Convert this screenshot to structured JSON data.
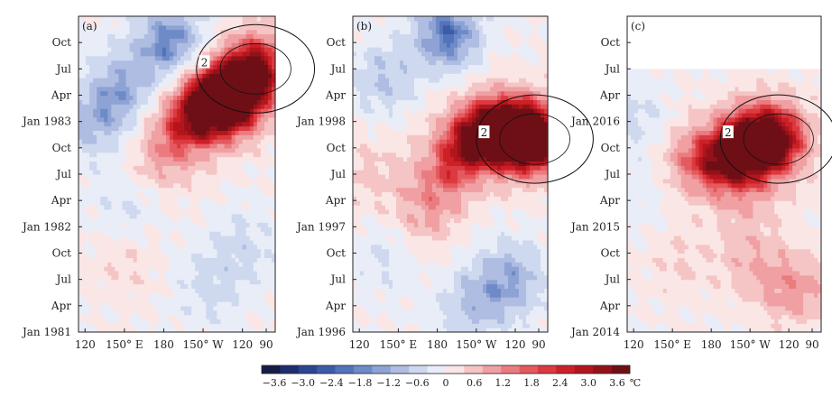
{
  "chart_data": [
    {
      "type": "heatmap",
      "panel_label": "(a)",
      "x_ticks": [
        "120",
        "150° E",
        "180",
        "150° W",
        "120",
        "90"
      ],
      "y_ticks": [
        "Jan 1981",
        "Apr",
        "Jul",
        "Oct",
        "Jan 1982",
        "Apr",
        "Jul",
        "Oct",
        "Jan 1983",
        "Apr",
        "Jul",
        "Oct"
      ],
      "y_start": "Jan 1981",
      "y_end": "Dec 1983",
      "contour_labels": [
        "2"
      ],
      "features": [
        {
          "lon": 250,
          "month": 30,
          "value": 3.6
        },
        {
          "lon": 232,
          "month": 26,
          "value": 3.0
        },
        {
          "lon": 215,
          "month": 27,
          "value": 2.6
        },
        {
          "lon": 200,
          "month": 24,
          "value": 1.8
        },
        {
          "lon": 182,
          "month": 21,
          "value": 1.2
        },
        {
          "lon": 165,
          "month": 17,
          "value": 0.6
        },
        {
          "lon": 185,
          "month": 33,
          "value": -2.4
        },
        {
          "lon": 148,
          "month": 28,
          "value": -1.6
        },
        {
          "lon": 128,
          "month": 24,
          "value": -1.4
        },
        {
          "lon": 155,
          "month": 15,
          "value": -1.0
        },
        {
          "lon": 240,
          "month": 10,
          "value": -0.8
        },
        {
          "lon": 215,
          "month": 5,
          "value": -0.8
        },
        {
          "lon": 150,
          "month": 8,
          "value": 0.6
        }
      ]
    },
    {
      "type": "heatmap",
      "panel_label": "(b)",
      "x_ticks": [
        "120",
        "150° E",
        "180",
        "150° W",
        "120",
        "90"
      ],
      "y_ticks": [
        "Jan 1996",
        "Apr",
        "Jul",
        "Oct",
        "Jan 1997",
        "Apr",
        "Jul",
        "Oct",
        "Jan 1998",
        "Apr",
        "Jul",
        "Oct"
      ],
      "y_start": "Jan 1996",
      "y_end": "Dec 1998",
      "contour_labels": [
        "2"
      ],
      "features": [
        {
          "lon": 255,
          "month": 22,
          "value": 4.0
        },
        {
          "lon": 235,
          "month": 23,
          "value": 3.0
        },
        {
          "lon": 212,
          "month": 23,
          "value": 2.4
        },
        {
          "lon": 195,
          "month": 20,
          "value": 1.8
        },
        {
          "lon": 178,
          "month": 16,
          "value": 1.2
        },
        {
          "lon": 165,
          "month": 12,
          "value": 0.8
        },
        {
          "lon": 188,
          "month": 34,
          "value": -2.6
        },
        {
          "lon": 138,
          "month": 29,
          "value": -1.2
        },
        {
          "lon": 235,
          "month": 6,
          "value": -1.8
        },
        {
          "lon": 205,
          "month": 3,
          "value": -1.2
        },
        {
          "lon": 142,
          "month": 9,
          "value": -0.8
        },
        {
          "lon": 128,
          "month": 18,
          "value": 0.8
        }
      ]
    },
    {
      "type": "heatmap",
      "panel_label": "(c)",
      "x_ticks": [
        "120",
        "150° E",
        "180",
        "150° W",
        "120",
        "90"
      ],
      "y_ticks": [
        "Jan 2014",
        "Apr",
        "Jul",
        "Oct",
        "Jan 2015",
        "Apr",
        "Jul",
        "Oct",
        "Jan 2016",
        "Apr",
        "Jul",
        "Oct"
      ],
      "y_start": "Jan 2014",
      "y_end": "Dec 2016",
      "data_end": "Jun 2016",
      "contour_labels": [
        "2"
      ],
      "features": [
        {
          "lon": 232,
          "month": 22,
          "value": 3.0
        },
        {
          "lon": 212,
          "month": 22,
          "value": 2.6
        },
        {
          "lon": 195,
          "month": 20,
          "value": 2.0
        },
        {
          "lon": 178,
          "month": 19,
          "value": 1.2
        },
        {
          "lon": 160,
          "month": 20,
          "value": 1.0
        },
        {
          "lon": 245,
          "month": 5,
          "value": 1.6
        },
        {
          "lon": 210,
          "month": 8,
          "value": 1.0
        },
        {
          "lon": 155,
          "month": 8,
          "value": 0.6
        },
        {
          "lon": 210,
          "month": 15,
          "value": 0.8
        },
        {
          "lon": 122,
          "month": 24,
          "value": -0.8
        },
        {
          "lon": 128,
          "month": 16,
          "value": -0.4
        }
      ]
    }
  ],
  "colorbar": {
    "tick_labels": [
      "−3.6",
      "−3.0",
      "−2.4",
      "−1.8",
      "−1.2",
      "−0.6",
      "0",
      "0.6",
      "1.2",
      "1.8",
      "2.4",
      "3.0",
      "3.6"
    ],
    "tick_values": [
      -3.6,
      -3.0,
      -2.4,
      -1.8,
      -1.2,
      -0.6,
      0,
      0.6,
      1.2,
      1.8,
      2.4,
      3.0,
      3.6
    ],
    "unit": "℃",
    "colors": [
      "#161d45",
      "#1e2e6c",
      "#2b4591",
      "#3c5ba9",
      "#5373bb",
      "#6e8bc8",
      "#8ea3d4",
      "#afbde2",
      "#ced8ee",
      "#e9edf8",
      "#fbe6e6",
      "#f5c4c5",
      "#f0a0a2",
      "#ea7c80",
      "#e45a5f",
      "#db3a40",
      "#cc2027",
      "#b3151c",
      "#94111a",
      "#6e0f16"
    ]
  }
}
